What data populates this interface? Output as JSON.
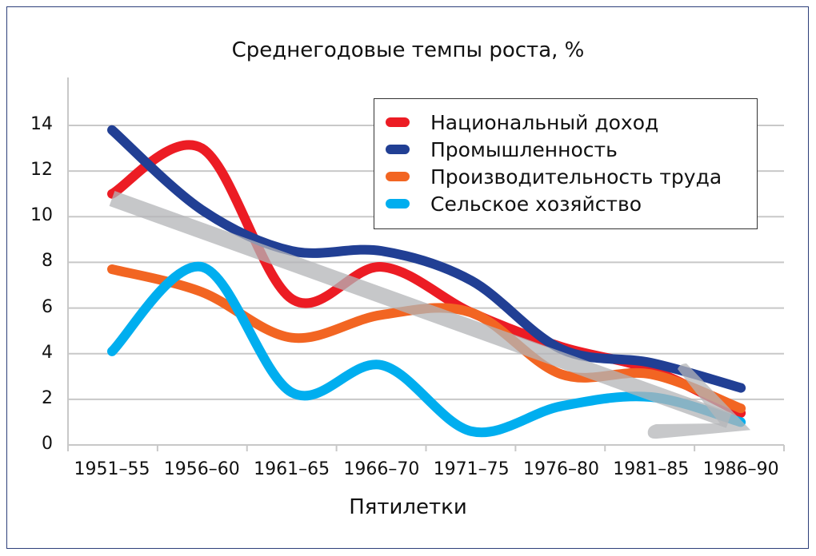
{
  "chart_data": {
    "type": "line",
    "title": "Среднегодовые темпы роста, %",
    "xlabel": "Пятилетки",
    "ylabel": "",
    "ylim": [
      0,
      14
    ],
    "yticks": [
      "0",
      "2",
      "4",
      "6",
      "8",
      "10",
      "12",
      "14"
    ],
    "grid": true,
    "legend_position": "top-right",
    "categories": [
      "1951–55",
      "1956–60",
      "1961–65",
      "1966–70",
      "1971–75",
      "1976–80",
      "1981–85",
      "1986–90"
    ],
    "series": [
      {
        "name": "Национальный доход",
        "color": "#ec1c24",
        "values": [
          11.0,
          13.0,
          6.4,
          7.8,
          5.8,
          4.3,
          3.3,
          1.4
        ]
      },
      {
        "name": "Промышленность",
        "color": "#213f94",
        "values": [
          13.8,
          10.3,
          8.5,
          8.5,
          7.2,
          4.2,
          3.6,
          2.5
        ]
      },
      {
        "name": "Производительность труда",
        "color": "#f26522",
        "values": [
          7.7,
          6.7,
          4.7,
          5.7,
          5.8,
          3.1,
          3.1,
          1.6
        ]
      },
      {
        "name": "Сельское хозяйство",
        "color": "#00aeef",
        "values": [
          4.1,
          7.8,
          2.3,
          3.5,
          0.6,
          1.7,
          2.1,
          1.0
        ]
      }
    ],
    "trend": {
      "color": "#b4b5b8",
      "start": 10.8,
      "end": 0.9
    }
  }
}
